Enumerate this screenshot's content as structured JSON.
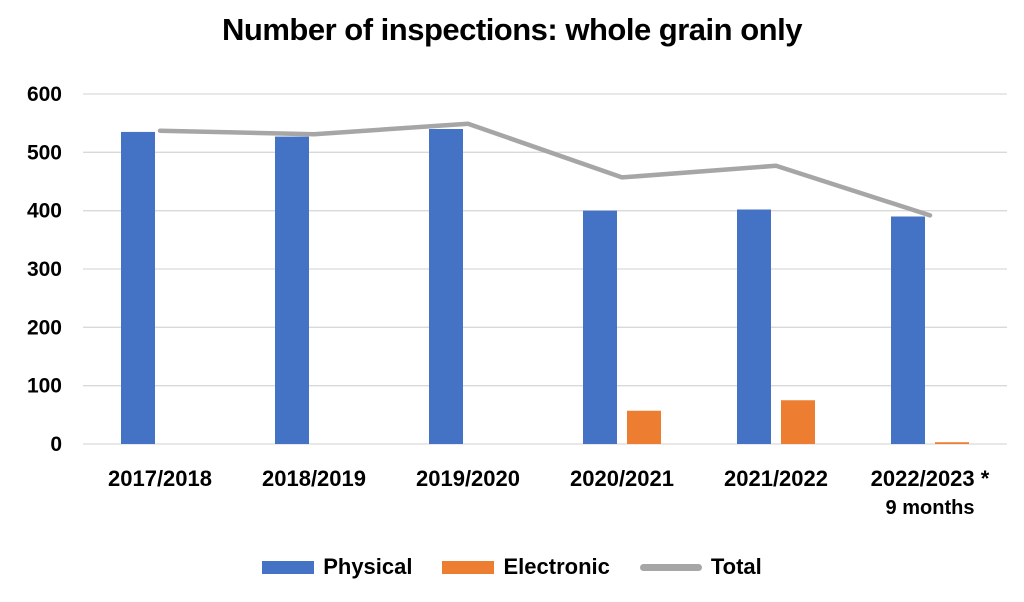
{
  "chart_data": {
    "type": "bar+line",
    "title": "Number of inspections: whole grain only",
    "categories": [
      "2017/2018",
      "2018/2019",
      "2019/2020",
      "2020/2021",
      "2021/2022",
      "2022/2023 *"
    ],
    "last_category_note": "9 months",
    "series": [
      {
        "name": "Physical",
        "type": "bar",
        "color": "#4472C4",
        "values": [
          535,
          527,
          540,
          400,
          402,
          390
        ]
      },
      {
        "name": "Electronic",
        "type": "bar",
        "color": "#ED7D31",
        "values": [
          0,
          0,
          0,
          57,
          75,
          3
        ]
      },
      {
        "name": "Total",
        "type": "line",
        "color": "#A6A6A6",
        "values": [
          537,
          531,
          549,
          457,
          477,
          392
        ]
      }
    ],
    "ylim": [
      0,
      600
    ],
    "y_ticks": [
      0,
      100,
      200,
      300,
      400,
      500,
      600
    ],
    "grid": true,
    "legend_position": "bottom"
  },
  "colors": {
    "gridline": "#D9D9D9",
    "text": "#000000",
    "background": "#FFFFFF"
  }
}
